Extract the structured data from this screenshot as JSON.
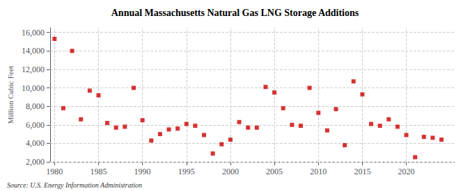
{
  "chart_data": {
    "type": "scatter",
    "title": "Annual Massachusetts Natural Gas LNG Storage Additions",
    "ylabel": "Million Cubic Feet",
    "annotations": [
      "Source: U.S. Energy Information Administration"
    ],
    "x": [
      1980,
      1981,
      1982,
      1983,
      1984,
      1985,
      1986,
      1987,
      1988,
      1989,
      1990,
      1991,
      1992,
      1993,
      1994,
      1995,
      1996,
      1997,
      1998,
      1999,
      2000,
      2001,
      2002,
      2003,
      2004,
      2005,
      2006,
      2007,
      2008,
      2009,
      2010,
      2011,
      2012,
      2013,
      2014,
      2015,
      2016,
      2017,
      2018,
      2019,
      2020,
      2021,
      2022,
      2023,
      2024
    ],
    "values": [
      15300,
      7800,
      14000,
      6600,
      9700,
      9200,
      6200,
      5700,
      5800,
      10000,
      6500,
      4300,
      5000,
      5500,
      5600,
      6100,
      5900,
      4900,
      2900,
      3900,
      4400,
      6300,
      5700,
      5700,
      10100,
      9500,
      7800,
      6000,
      5900,
      10000,
      7300,
      5400,
      7700,
      3800,
      10700,
      9300,
      6100,
      5900,
      6600,
      5800,
      4900,
      2500,
      4700,
      4600,
      4400
    ],
    "color": "#cc0000",
    "marker": "square",
    "xlim": [
      1979.5,
      2025.5
    ],
    "ylim": [
      2000,
      16500
    ],
    "xticks": [
      1980,
      1985,
      1990,
      1995,
      2000,
      2005,
      2010,
      2015,
      2020
    ],
    "yticks": [
      {
        "value": 2000,
        "label": "2,000"
      },
      {
        "value": 4000,
        "label": "4,000"
      },
      {
        "value": 6000,
        "label": "6,000"
      },
      {
        "value": 8000,
        "label": "8,000"
      },
      {
        "value": 10000,
        "label": "10,000"
      },
      {
        "value": 12000,
        "label": "12,000"
      },
      {
        "value": 14000,
        "label": "14,000"
      },
      {
        "value": 16000,
        "label": "16,000"
      }
    ],
    "grid": true
  }
}
